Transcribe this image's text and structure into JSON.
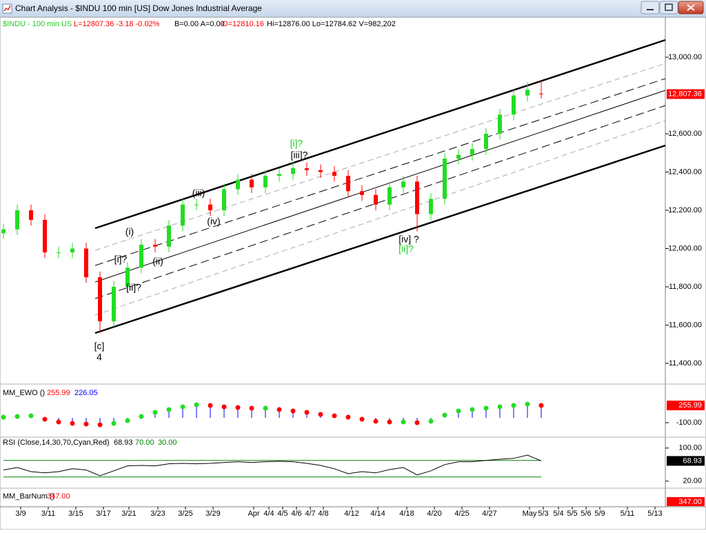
{
  "window": {
    "title": "Chart Analysis - $INDU 100 min [US] Dow Jones Industrial Average"
  },
  "header": [
    {
      "text": "$INDU - 100 min  US",
      "color": "#22cc22"
    },
    {
      "text": "L=12807.36 -3.18 -0.02%",
      "color": "#ff0000"
    },
    {
      "text": "B=0.00 A=0.00",
      "color": "#000000"
    },
    {
      "text": "O=12810.16",
      "color": "#ff0000"
    },
    {
      "text": "Hi=12876.00 Lo=12784.62 V=982,202",
      "color": "#000000"
    }
  ],
  "chart_data": [
    {
      "type": "candlestick",
      "open": [
        12080,
        12100,
        12200,
        12150,
        11980,
        11980,
        12000,
        11850,
        11620,
        11800,
        11900,
        12020,
        12010,
        12120,
        12230,
        12230,
        12200,
        12310,
        12360,
        12320,
        12380,
        12390,
        12420,
        12410,
        12400,
        12380,
        12300,
        12280,
        12230,
        12320,
        12350,
        12180,
        12260,
        12470,
        12490,
        12520,
        12600,
        12700,
        12800,
        12810.16
      ],
      "high": [
        12130,
        12230,
        12230,
        12180,
        12010,
        12030,
        12030,
        11880,
        11830,
        11930,
        12050,
        12050,
        12150,
        12260,
        12260,
        12260,
        12340,
        12390,
        12390,
        12410,
        12420,
        12450,
        12450,
        12440,
        12430,
        12410,
        12330,
        12310,
        12350,
        12380,
        12380,
        12290,
        12500,
        12520,
        12550,
        12630,
        12730,
        12830,
        12870,
        12876
      ],
      "low": [
        12050,
        12070,
        12120,
        11950,
        11950,
        11950,
        11820,
        11560,
        11590,
        11770,
        11870,
        11980,
        11980,
        12090,
        12200,
        12170,
        12170,
        12280,
        12290,
        12290,
        12350,
        12360,
        12380,
        12370,
        12350,
        12270,
        12250,
        12200,
        12200,
        12290,
        12090,
        12150,
        12230,
        12440,
        12460,
        12490,
        12570,
        12670,
        12770,
        12784.62
      ],
      "close": [
        12100,
        12200,
        12150,
        11980,
        11980,
        12000,
        11850,
        11620,
        11800,
        11900,
        12020,
        12010,
        12120,
        12230,
        12230,
        12200,
        12310,
        12360,
        12320,
        12380,
        12390,
        12420,
        12410,
        12400,
        12380,
        12300,
        12280,
        12230,
        12320,
        12350,
        12180,
        12260,
        12470,
        12490,
        12520,
        12600,
        12700,
        12800,
        12830,
        12807.36
      ],
      "up_color": "#22dd22",
      "down_color": "#ff0000",
      "ylim": [
        11299,
        13209
      ],
      "yticks": [
        {
          "value": 11400,
          "label": "11,400.00"
        },
        {
          "value": 11600,
          "label": "11,600.00"
        },
        {
          "value": 11800,
          "label": "11,800.00"
        },
        {
          "value": 12000,
          "label": "12,000.00"
        },
        {
          "value": 12200,
          "label": "12,200.00"
        },
        {
          "value": 12400,
          "label": "12,400.00"
        },
        {
          "value": 12600,
          "label": "12,600.00"
        },
        {
          "value": 13000,
          "label": "13,000.00"
        }
      ],
      "last_price": {
        "value": 12807.36,
        "label": "12,807.36"
      },
      "annotations": [
        {
          "text": "(i)",
          "color": "#000000"
        },
        {
          "text": "[i]?",
          "color": "#000000"
        },
        {
          "text": "(ii)",
          "color": "#000000"
        },
        {
          "text": "[ii]?",
          "color": "#000000"
        },
        {
          "text": "(iii)",
          "color": "#000000"
        },
        {
          "text": "(iv)",
          "color": "#000000"
        },
        {
          "text": "[iii]?",
          "color": "#000000"
        },
        {
          "text": "[i]?",
          "color": "#22cc22"
        },
        {
          "text": "[iv] ?",
          "color": "#000000"
        },
        {
          "text": "[ii]?",
          "color": "#22cc22"
        },
        {
          "text": "[c]",
          "color": "#000000"
        },
        {
          "text": "4",
          "color": "#000000"
        }
      ],
      "date_labels": [
        "3/9",
        "3/11",
        "3/15",
        "3/17",
        "3/21",
        "3/23",
        "3/25",
        "3/29",
        "Apr",
        "4/4",
        "4/5",
        "4/6",
        "4/7",
        "4/8",
        "4/12",
        "4/14",
        "4/18",
        "4/20",
        "4/25",
        "4/27",
        "May",
        "5/3",
        "5/4",
        "5/5",
        "5/6",
        "5/9",
        "5/11",
        "5/13"
      ]
    },
    {
      "type": "bar",
      "title": "MM_EWO ()",
      "series": [
        {
          "color": "#ff0000",
          "up_color": "#22dd22",
          "value_label": "255.99",
          "values": [
            14,
            28,
            42,
            -29,
            -86,
            -114,
            -128,
            -143,
            -114,
            -57,
            28,
            114,
            171,
            228,
            270,
            256,
            228,
            213,
            199,
            199,
            171,
            142,
            114,
            71,
            42,
            14,
            -29,
            -71,
            -86,
            -86,
            -100,
            -71,
            57,
            142,
            171,
            199,
            228,
            256,
            284,
            255.99
          ]
        },
        {
          "color": "#0000ff",
          "value_label": "226.05",
          "values": [
            0,
            10,
            20,
            -10,
            -60,
            -90,
            -110,
            -120,
            -110,
            -70,
            0,
            80,
            140,
            190,
            230,
            240,
            225,
            210,
            200,
            195,
            175,
            150,
            120,
            85,
            50,
            20,
            -15,
            -55,
            -75,
            -80,
            -90,
            -75,
            20,
            110,
            150,
            180,
            205,
            225,
            240,
            226.05
          ]
        }
      ],
      "ylim": [
        -370,
        655
      ],
      "yticks": [
        {
          "value": -100,
          "label": "-100.00"
        }
      ]
    },
    {
      "type": "line",
      "title": "RSI (Close,14,30,70,Cyan,Red)",
      "series": [
        {
          "color": "#000000",
          "value_label": "68.93",
          "values": [
            47,
            53,
            43,
            40,
            43,
            50,
            47,
            33,
            45,
            57,
            58,
            57,
            62,
            63,
            62,
            63,
            65,
            67,
            65,
            67,
            68,
            67,
            63,
            58,
            50,
            38,
            43,
            40,
            48,
            53,
            35,
            45,
            60,
            67,
            67,
            70,
            73,
            75,
            83,
            68.93
          ]
        }
      ],
      "levels": [
        {
          "value": 70,
          "label": "70.00"
        },
        {
          "value": 30,
          "label": "30.00"
        }
      ],
      "level_color": "#008000",
      "ylim": [
        8,
        123
      ],
      "yticks": [
        {
          "value": 100,
          "label": "100.00"
        },
        {
          "value": 20,
          "label": "20.00"
        }
      ]
    }
  ],
  "barnum": {
    "title": "MM_BarNum ()",
    "value": 347,
    "value_label": "347.00"
  }
}
